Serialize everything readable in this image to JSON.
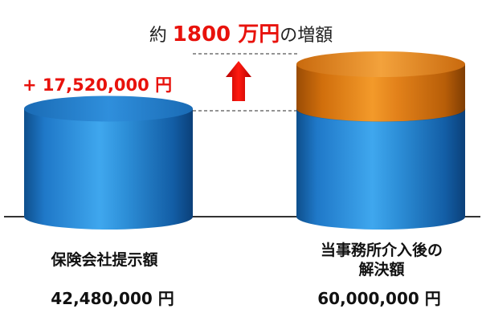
{
  "title": {
    "prefix": "約",
    "highlight": "1800 万円",
    "suffix": "の増額"
  },
  "increase_label": "+ 17,520,000 円",
  "colors": {
    "base_cylinder": "#1f78c8",
    "increase_cylinder": "#e07a10",
    "accent_red": "#e8120c"
  },
  "chart_data": {
    "type": "bar",
    "style": "3d-cylinder",
    "categories": [
      "保険会社提示額",
      "当事務所介入後の解決額"
    ],
    "series": [
      {
        "values": [
          42480000,
          42480000
        ]
      },
      {
        "values": [
          0,
          17520000
        ]
      }
    ],
    "value_labels": [
      "42,480,000 円",
      "60,000,000 円"
    ],
    "category_labels": [
      {
        "line1": "保険会社提示額",
        "line2": ""
      },
      {
        "line1": "当事務所介入後の",
        "line2": "解決額"
      }
    ],
    "annotation": "+ 17,520,000 円",
    "ylim": [
      0,
      60000000
    ]
  }
}
